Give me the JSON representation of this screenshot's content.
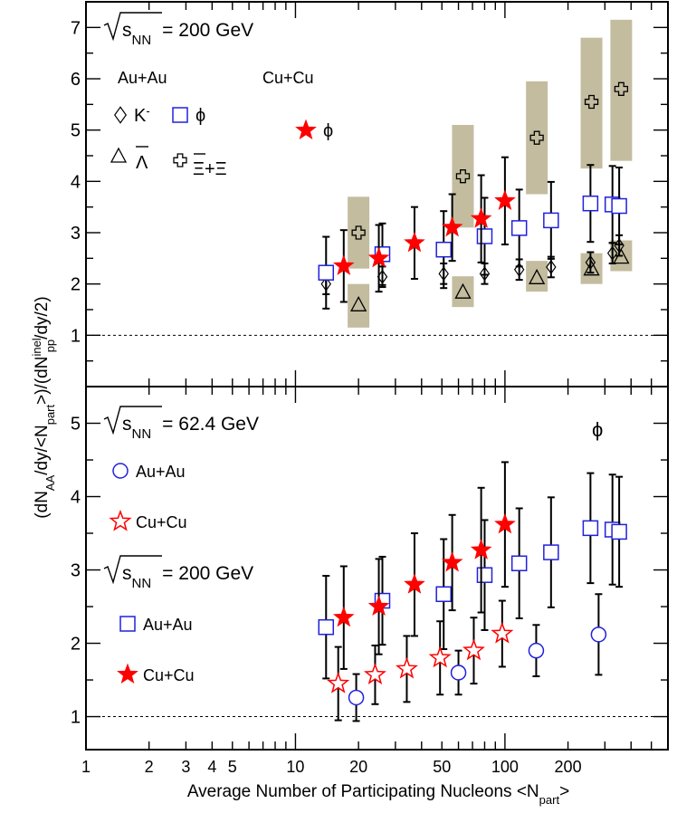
{
  "chart_data": [
    {
      "type": "scatter",
      "panel": "top",
      "xscale": "log",
      "xlim": [
        1,
        600
      ],
      "ylim": [
        0,
        7.5
      ],
      "grid": false,
      "reference_line": 1,
      "yticks": [
        "1",
        "2",
        "3",
        "4",
        "5",
        "6",
        "7"
      ],
      "annotations": {
        "energy_prefix": "s",
        "energy_sub": "NN",
        "energy_value": "= 200 GeV",
        "system_auau": "Au+Au",
        "system_cucu": "Cu+Cu"
      },
      "legend": [
        {
          "label": "K",
          "sup": "-",
          "marker": "diamond-open",
          "color": "#000000"
        },
        {
          "label": "ϕ",
          "marker": "square-open",
          "color": "#2020dd"
        },
        {
          "label": "Λ",
          "marker": "triangle-open",
          "color": "#000000"
        },
        {
          "label": "Ξ+Ξ",
          "marker": "cross-open",
          "color": "#000000"
        },
        {
          "label": "ϕ",
          "marker": "star-filled",
          "color": "#ff0000"
        }
      ],
      "series": [
        {
          "name": "ϕ",
          "marker": "star-filled",
          "color": "#ff0000",
          "x": [
            17,
            25,
            37,
            56,
            77,
            100
          ],
          "y": [
            2.35,
            2.5,
            2.8,
            3.1,
            3.27,
            3.62
          ],
          "err": [
            0.7,
            0.65,
            0.7,
            0.65,
            0.85,
            0.85
          ]
        },
        {
          "name": "ϕ",
          "marker": "square-open",
          "color": "#2020dd",
          "x": [
            14,
            26,
            51,
            80,
            117,
            166,
            256,
            326,
            351
          ],
          "y": [
            2.22,
            2.58,
            2.67,
            2.93,
            3.09,
            3.24,
            3.57,
            3.55,
            3.52
          ],
          "err": [
            0.7,
            0.6,
            0.75,
            0.75,
            0.75,
            0.75,
            0.75,
            0.75,
            0.75
          ]
        },
        {
          "name": "K",
          "marker": "diamond-open",
          "color": "#000000",
          "x": [
            14,
            26,
            51,
            80,
            117,
            166,
            256,
            326,
            351
          ],
          "y": [
            2.0,
            2.14,
            2.2,
            2.2,
            2.28,
            2.33,
            2.42,
            2.6,
            2.75
          ],
          "err": [
            0.2,
            0.2,
            0.2,
            0.2,
            0.2,
            0.2,
            0.2,
            0.2,
            0.2
          ]
        },
        {
          "name": "Λ",
          "marker": "triangle-open",
          "color": "#000000",
          "x": [
            20,
            63,
            142,
            259,
            359
          ],
          "y": [
            1.6,
            1.85,
            2.13,
            2.3,
            2.53
          ],
          "sys": [
            [
              1.15,
              2.0
            ],
            [
              1.55,
              2.15
            ],
            [
              1.85,
              2.45
            ],
            [
              2.0,
              2.6
            ],
            [
              2.25,
              2.85
            ]
          ]
        },
        {
          "name": "Ξ+Ξ",
          "marker": "cross-open",
          "color": "#000000",
          "x": [
            20,
            63,
            142,
            259,
            359
          ],
          "y": [
            3.0,
            4.1,
            4.85,
            5.55,
            5.8
          ],
          "sys": [
            [
              2.3,
              3.7
            ],
            [
              3.1,
              5.1
            ],
            [
              3.75,
              5.95
            ],
            [
              4.25,
              6.8
            ],
            [
              4.4,
              7.15
            ]
          ]
        }
      ]
    },
    {
      "type": "scatter",
      "panel": "bottom",
      "xscale": "log",
      "xlim": [
        1,
        600
      ],
      "ylim": [
        0.55,
        5.5
      ],
      "grid": false,
      "reference_line": 1,
      "yticks": [
        "1",
        "2",
        "3",
        "4",
        "5"
      ],
      "annotations": {
        "energy1_prefix": "s",
        "energy1_sub": "NN",
        "energy1_value": "= 62.4 GeV",
        "energy2_prefix": "s",
        "energy2_sub": "NN",
        "energy2_value": "= 200 GeV",
        "particle": "ϕ"
      },
      "legend": [
        {
          "label": "Au+Au",
          "marker": "circle-open",
          "color": "#2020dd"
        },
        {
          "label": "Cu+Cu",
          "marker": "star-open",
          "color": "#ff0000"
        },
        {
          "label": "Au+Au",
          "marker": "square-open",
          "color": "#2020dd"
        },
        {
          "label": "Cu+Cu",
          "marker": "star-filled",
          "color": "#ff0000"
        }
      ],
      "series": [
        {
          "name": "Au+Au",
          "energy": "200 GeV",
          "marker": "square-open",
          "color": "#2020dd",
          "x": [
            14,
            26,
            51,
            80,
            117,
            166,
            256,
            326,
            351
          ],
          "y": [
            2.22,
            2.58,
            2.67,
            2.93,
            3.09,
            3.24,
            3.57,
            3.55,
            3.52
          ],
          "err": [
            0.7,
            0.6,
            0.75,
            0.75,
            0.75,
            0.75,
            0.75,
            0.75,
            0.75
          ]
        },
        {
          "name": "Cu+Cu",
          "energy": "200 GeV",
          "marker": "star-filled",
          "color": "#ff0000",
          "x": [
            17,
            25,
            37,
            56,
            77,
            100
          ],
          "y": [
            2.35,
            2.5,
            2.8,
            3.1,
            3.27,
            3.62
          ],
          "err": [
            0.7,
            0.65,
            0.7,
            0.65,
            0.85,
            0.85
          ]
        },
        {
          "name": "Cu+Cu",
          "energy": "62.4 GeV",
          "marker": "star-open",
          "color": "#ff0000",
          "x": [
            16,
            24,
            34,
            49,
            71,
            97
          ],
          "y": [
            1.45,
            1.57,
            1.65,
            1.8,
            1.9,
            2.13
          ],
          "err": [
            0.5,
            0.4,
            0.45,
            0.5,
            0.45,
            0.45
          ]
        },
        {
          "name": "Au+Au",
          "energy": "62.4 GeV",
          "marker": "circle-open",
          "color": "#2020dd",
          "x": [
            19.5,
            60,
            141,
            280
          ],
          "y": [
            1.26,
            1.6,
            1.9,
            2.12
          ],
          "err": [
            0.32,
            0.3,
            0.35,
            0.55
          ]
        }
      ]
    }
  ],
  "axes": {
    "x_tick_labels": [
      "1",
      "2",
      "3",
      "4",
      "5",
      "10",
      "20",
      "50",
      "100",
      "200"
    ],
    "xlabel_main": "Average Number of Participating Nucleons <N",
    "xlabel_sub": "part",
    "xlabel_end": ">",
    "ylabel": {
      "t1": "(dN",
      "s1": "AA",
      "t2": "/dy/<N",
      "s2": "part",
      "t3": ">)/(dN",
      "sup3": "inel",
      "s3": "pp",
      "t4": "/dy/2)"
    }
  }
}
